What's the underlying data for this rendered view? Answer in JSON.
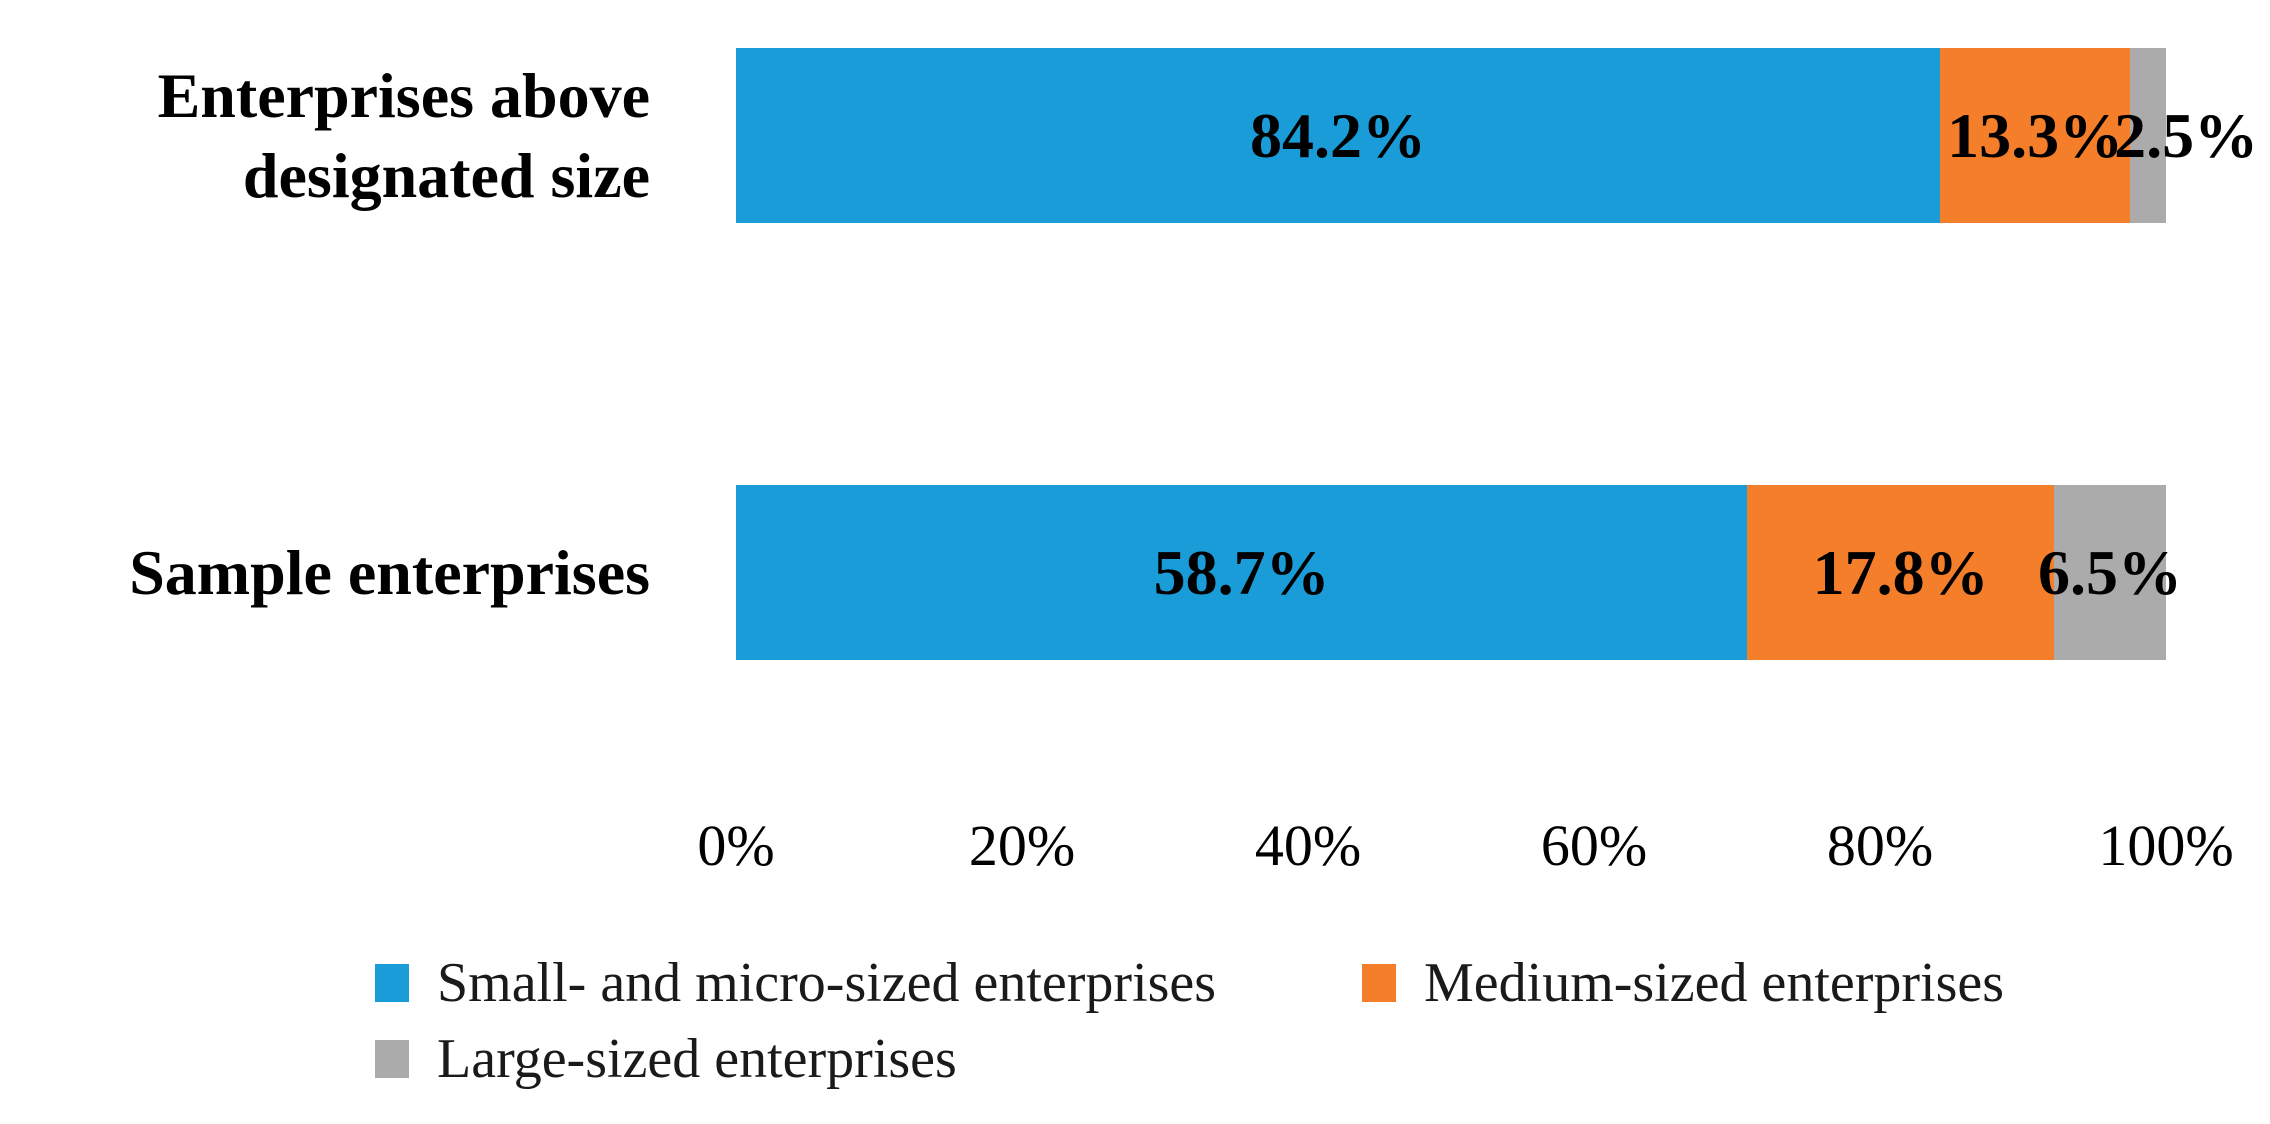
{
  "chart_data": {
    "type": "bar",
    "variant": "horizontal-stacked-100pct",
    "title": "",
    "categories": [
      "Enterprises above designated size",
      "Sample enterprises"
    ],
    "series": [
      {
        "name": "Small- and micro-sized enterprises",
        "color": "#1A9CD8",
        "values": [
          84.2,
          58.7
        ],
        "labels": [
          "84.2%",
          "58.7%"
        ]
      },
      {
        "name": "Medium-sized enterprises",
        "color": "#F57E2B",
        "values": [
          13.3,
          17.8
        ],
        "labels": [
          "13.3%",
          "17.8%"
        ]
      },
      {
        "name": "Large-sized enterprises",
        "color": "#ABABAB",
        "values": [
          2.5,
          6.5
        ],
        "labels": [
          "2.5%",
          "6.5%"
        ]
      }
    ],
    "x_axis": {
      "ticks": [
        "0%",
        "20%",
        "40%",
        "60%",
        "80%",
        "100%"
      ],
      "range": [
        0,
        100
      ],
      "gridlines": false
    },
    "legend": {
      "position": "bottom-left",
      "entries": [
        "Small- and micro-sized enterprises",
        "Medium-sized enterprises",
        "Large-sized enterprises"
      ]
    },
    "notes": "Each bar is drawn normalized to full width (100%); data labels show raw percentages printed inside each segment."
  }
}
